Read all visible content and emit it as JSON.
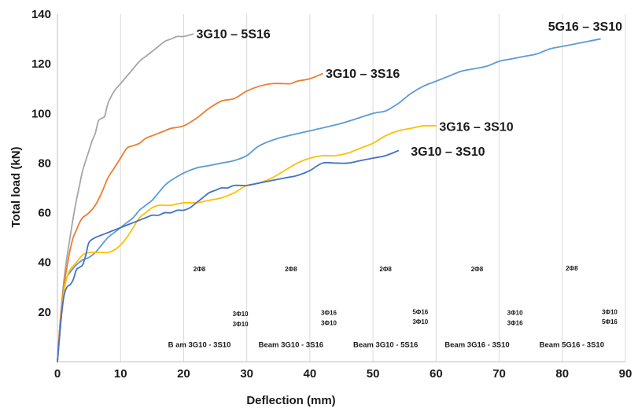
{
  "chart_data": {
    "type": "line",
    "title": "",
    "xlabel": "Deflection (mm)",
    "ylabel": "Total load (kN)",
    "xlim": [
      0,
      90
    ],
    "ylim": [
      0,
      140
    ],
    "xticks": [
      0,
      10,
      20,
      30,
      40,
      50,
      60,
      70,
      80,
      90
    ],
    "yticks": [
      20,
      40,
      60,
      80,
      100,
      120,
      140
    ],
    "grid": "vertical",
    "series": [
      {
        "name": "3G10 – 5S16",
        "color": "#a6a6a6",
        "x": [
          0,
          0.5,
          1,
          1.5,
          2,
          2.5,
          3,
          3.5,
          4,
          5,
          5.5,
          6,
          6.5,
          7,
          7.5,
          8,
          9,
          10,
          11,
          12,
          13,
          14,
          15,
          16,
          17,
          18,
          19,
          20,
          21.5
        ],
        "y": [
          0,
          18,
          32,
          42,
          50,
          58,
          65,
          71,
          77,
          85,
          89,
          92,
          97,
          98,
          99,
          104,
          109,
          112,
          115,
          118,
          121,
          123,
          125,
          127,
          129,
          130,
          131,
          131,
          132
        ]
      },
      {
        "name": "3G10 – 3S16",
        "color": "#ed7d31",
        "x": [
          0,
          0.5,
          1,
          1.5,
          2,
          2.5,
          3,
          3.5,
          4,
          5,
          6,
          7,
          8,
          9,
          10,
          11,
          12,
          13,
          14,
          15,
          16,
          17,
          18,
          20,
          22,
          24,
          26,
          28,
          30,
          32,
          34,
          36,
          37,
          38,
          40,
          42
        ],
        "y": [
          0,
          18,
          30,
          38,
          45,
          50,
          53,
          56,
          58,
          60,
          63,
          68,
          74,
          78,
          82,
          86,
          87,
          88,
          90,
          91,
          92,
          93,
          94,
          95,
          98,
          102,
          105,
          106,
          109,
          111,
          112,
          112,
          112,
          113,
          114,
          116
        ]
      },
      {
        "name": "5G16 – 3S10",
        "color": "#5b9bd5",
        "x": [
          0,
          0.5,
          1,
          1.5,
          2,
          3,
          4,
          5,
          6,
          7,
          8,
          9,
          10,
          11,
          12,
          13,
          14,
          15,
          16,
          17,
          18,
          20,
          22,
          24,
          26,
          28,
          30,
          32,
          35,
          40,
          45,
          50,
          52,
          54,
          56,
          58,
          60,
          62,
          64,
          66,
          68,
          70,
          72,
          74,
          76,
          78,
          80,
          82,
          84,
          86
        ],
        "y": [
          0,
          15,
          28,
          34,
          36,
          39,
          41,
          42,
          44,
          47,
          50,
          52,
          54,
          56,
          58,
          61,
          63,
          65,
          68,
          71,
          73,
          76,
          78,
          79,
          80,
          81,
          83,
          87,
          90,
          93,
          96,
          100,
          101,
          104,
          108,
          111,
          113,
          115,
          117,
          118,
          119,
          121,
          122,
          123,
          124,
          126,
          127,
          128,
          129,
          130
        ]
      },
      {
        "name": "3G16 – 3S10",
        "color": "#ffc000",
        "x": [
          0,
          0.5,
          1,
          1.5,
          2,
          3,
          4,
          5,
          6,
          7,
          8,
          9,
          10,
          11,
          12,
          13,
          14,
          15,
          16,
          17,
          18,
          20,
          22,
          24,
          26,
          28,
          30,
          32,
          34,
          36,
          38,
          40,
          42,
          44,
          46,
          48,
          50,
          52,
          54,
          56,
          58,
          60
        ],
        "y": [
          0,
          15,
          28,
          34,
          37,
          40,
          43,
          44,
          44,
          44,
          44,
          45,
          47,
          50,
          54,
          58,
          60,
          62,
          63,
          63,
          63,
          64,
          64,
          65,
          66,
          68,
          71,
          72,
          74,
          77,
          80,
          82,
          83,
          83,
          84,
          86,
          88,
          91,
          93,
          94,
          95,
          95
        ]
      },
      {
        "name": "3G10 – 3S10",
        "color": "#4472c4",
        "x": [
          0,
          0.5,
          1,
          1.5,
          2,
          2.5,
          3,
          3.5,
          4,
          4.5,
          5,
          6,
          7,
          8,
          9,
          10,
          11,
          12,
          13,
          14,
          15,
          16,
          17,
          18,
          19,
          20,
          21,
          22,
          23,
          24,
          25,
          26,
          27,
          28,
          30,
          32,
          34,
          36,
          38,
          40,
          42,
          44,
          46,
          48,
          50,
          52,
          54
        ],
        "y": [
          0,
          15,
          26,
          30,
          31,
          33,
          37,
          38,
          39,
          43,
          48,
          50,
          51,
          52,
          53,
          54,
          55,
          56,
          57,
          58,
          59,
          59,
          60,
          60,
          61,
          61,
          62,
          64,
          66,
          68,
          69,
          70,
          70,
          71,
          71,
          72,
          73,
          74,
          75,
          77,
          80,
          80,
          80,
          81,
          82,
          83,
          85
        ]
      }
    ],
    "annotations": [
      {
        "text": "2Φ8",
        "x": 22.5,
        "y": 36.5
      },
      {
        "text": "2Φ8",
        "x": 37,
        "y": 36.5
      },
      {
        "text": "2Φ8",
        "x": 52,
        "y": 36.5
      },
      {
        "text": "2Φ8",
        "x": 66.5,
        "y": 36.5
      },
      {
        "text": "2Φ8",
        "x": 81.5,
        "y": 36.8
      },
      {
        "text": "3Φ10",
        "x": 29,
        "y": 18.3
      },
      {
        "text": "3Φ10",
        "x": 29,
        "y": 14.3
      },
      {
        "text": "3Φ16",
        "x": 43,
        "y": 18.8
      },
      {
        "text": "3Φ10",
        "x": 43,
        "y": 14.8
      },
      {
        "text": "5Φ16",
        "x": 57.5,
        "y": 19.2
      },
      {
        "text": "3Φ10",
        "x": 57.5,
        "y": 15.2
      },
      {
        "text": "3Φ10",
        "x": 72.5,
        "y": 18.8
      },
      {
        "text": "3Φ16",
        "x": 72.5,
        "y": 14.8
      },
      {
        "text": "3Φ10",
        "x": 87.5,
        "y": 19.2
      },
      {
        "text": "5Φ16",
        "x": 87.5,
        "y": 15.2
      }
    ],
    "beam_labels": [
      {
        "text": "B  am 3G10 - 3S10",
        "x": 22.5,
        "y": 5.8
      },
      {
        "text": "Beam 3G10 - 3S16",
        "x": 37,
        "y": 5.8
      },
      {
        "text": "Beam 3G10 - 5S16",
        "x": 52,
        "y": 5.8
      },
      {
        "text": "Beam 3G16 - 3S10",
        "x": 66.5,
        "y": 5.8
      },
      {
        "text": "Beam 5G16 - 3S10",
        "x": 81.5,
        "y": 5.8
      }
    ],
    "series_labels": [
      {
        "text": "3G10 – 5S16",
        "x": 22,
        "y": 132,
        "anchor": "start"
      },
      {
        "text": "3G10 – 3S16",
        "x": 42.5,
        "y": 116,
        "anchor": "start"
      },
      {
        "text": "5G16 – 3S10",
        "x": 89.5,
        "y": 135,
        "anchor": "end"
      },
      {
        "text": "3G16 – 3S10",
        "x": 60.5,
        "y": 94.5,
        "anchor": "start"
      },
      {
        "text": "3G10 – 3S10",
        "x": 56,
        "y": 84.5,
        "anchor": "start"
      }
    ]
  }
}
